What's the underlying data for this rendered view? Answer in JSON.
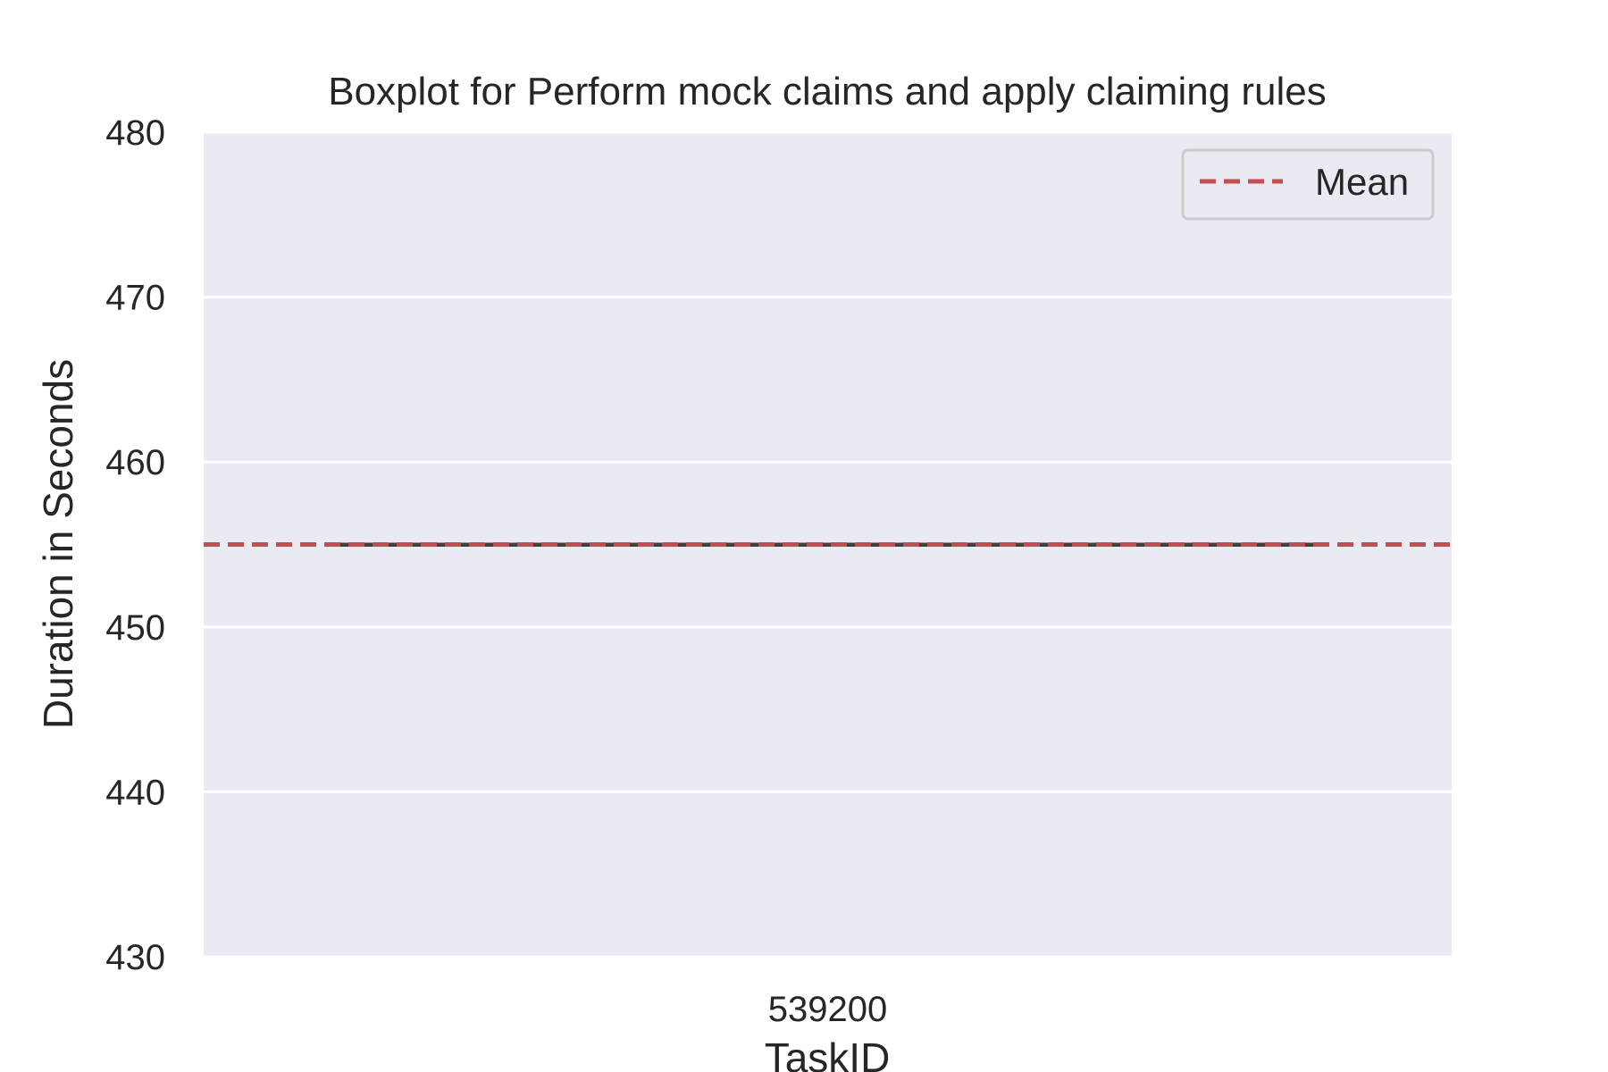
{
  "chart_data": {
    "type": "box",
    "title": "Boxplot for Perform mock claims and apply claiming rules",
    "xlabel": "TaskID",
    "ylabel": "Duration in Seconds",
    "categories": [
      "539200"
    ],
    "boxes": [
      {
        "category": "539200",
        "min": 455,
        "q1": 455,
        "median": 455,
        "q3": 455,
        "max": 455
      }
    ],
    "mean": 455,
    "ylim": [
      430,
      480
    ],
    "yticks": [
      430,
      440,
      450,
      460,
      470,
      480
    ],
    "grid": true,
    "legend": {
      "placement": "top-right",
      "entries": [
        {
          "label": "Mean",
          "style": "dashed",
          "color": "#c44e52"
        }
      ]
    },
    "colors": {
      "plot_background": "#eaeaf2",
      "grid": "#ffffff",
      "mean_line": "#c44e52",
      "box_line": "#3f3f3f",
      "text": "#262626"
    }
  }
}
